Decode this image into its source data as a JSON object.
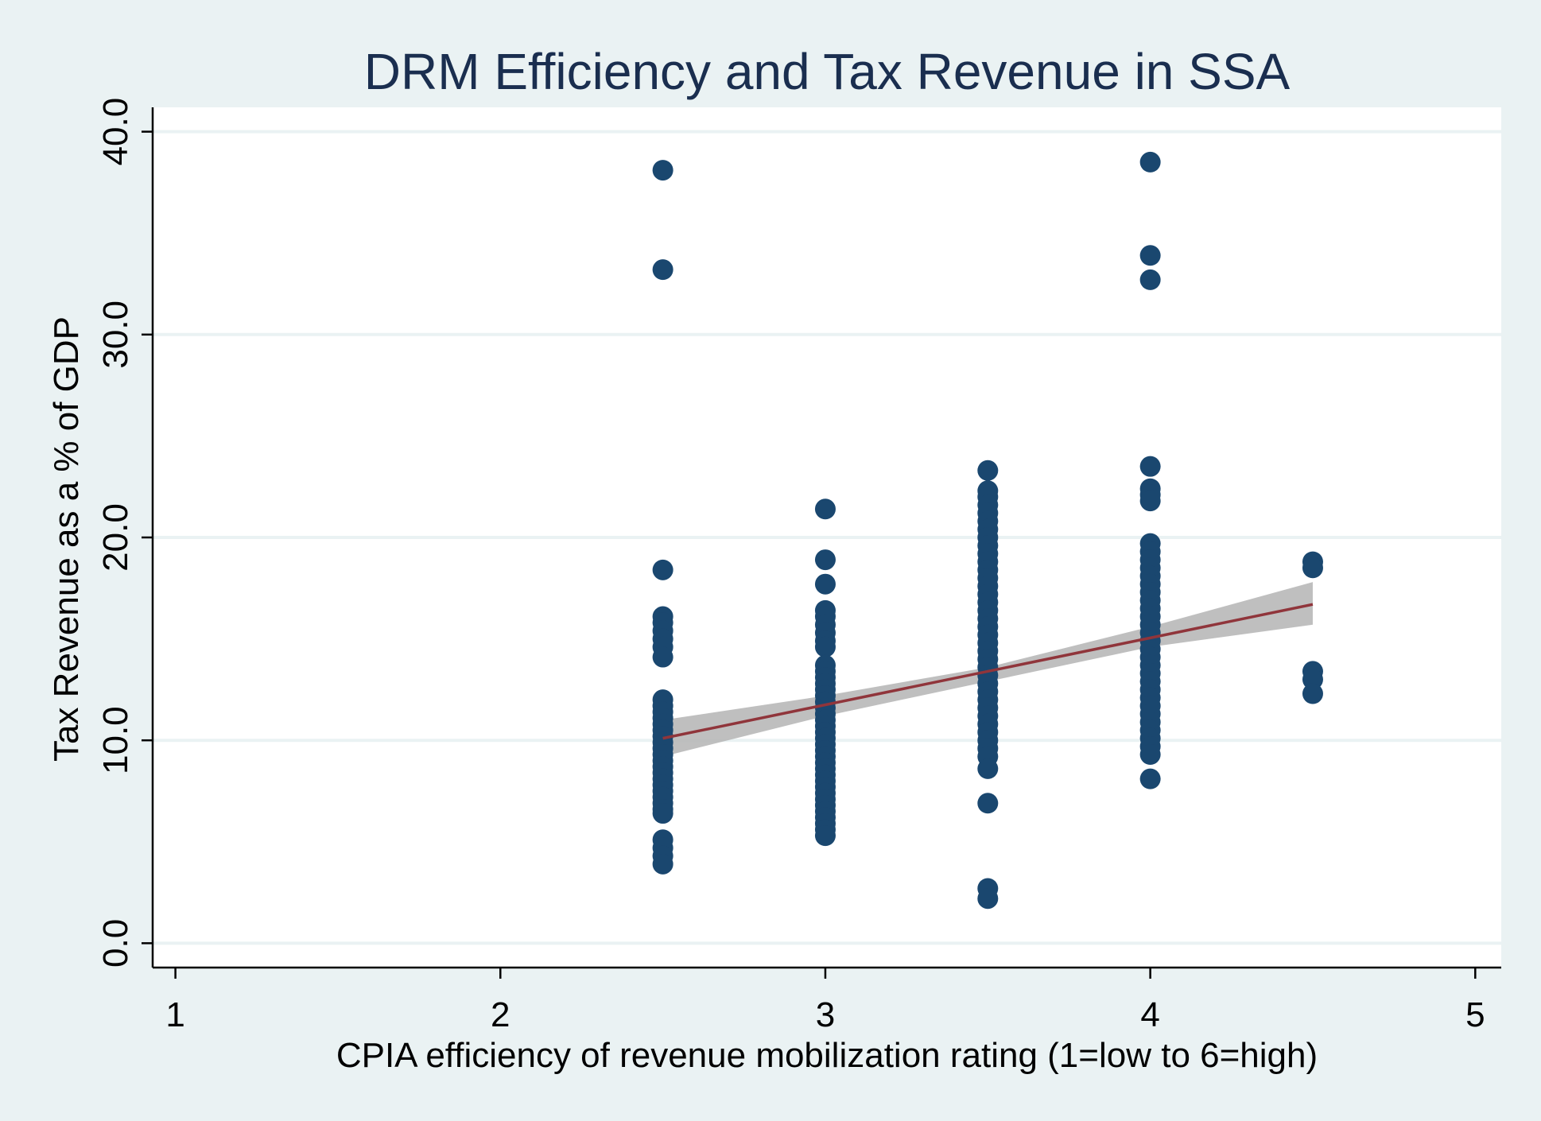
{
  "chart_data": {
    "type": "scatter",
    "title": "DRM Efficiency and Tax Revenue in SSA",
    "xlabel": "CPIA efficiency of revenue mobilization rating (1=low to 6=high)",
    "ylabel": "Tax Revenue as a % of GDP",
    "xlim": [
      0.93,
      5.08
    ],
    "ylim": [
      -1.2,
      41.2
    ],
    "x_ticks": [
      1,
      2,
      3,
      4,
      5
    ],
    "x_tick_labels": [
      "1",
      "2",
      "3",
      "4",
      "5"
    ],
    "y_ticks": [
      0,
      10,
      20,
      30,
      40
    ],
    "y_tick_labels": [
      "0.0",
      "10.0",
      "20.0",
      "30.0",
      "40.0"
    ],
    "grid": "horizontal",
    "legend": "none",
    "colors": {
      "points": "#1a476f",
      "fit_line": "#90353b",
      "confidence_band": "#b8b8b8",
      "plot_background": "#ffffff",
      "outer_background": "#eaf2f3",
      "grid": "#eaf2f3",
      "title": "#1a2e4f"
    },
    "series": [
      {
        "type": "scatter",
        "points": [
          [
            2.5,
            38.1
          ],
          [
            2.5,
            33.2
          ],
          [
            2.5,
            18.4
          ],
          [
            2.5,
            16.1
          ],
          [
            2.5,
            15.8
          ],
          [
            2.5,
            15.4
          ],
          [
            2.5,
            15.0
          ],
          [
            2.5,
            14.6
          ],
          [
            2.5,
            14.1
          ],
          [
            2.5,
            12.0
          ],
          [
            2.5,
            11.7
          ],
          [
            2.5,
            11.4
          ],
          [
            2.5,
            11.1
          ],
          [
            2.5,
            10.8
          ],
          [
            2.5,
            10.5
          ],
          [
            2.5,
            10.2
          ],
          [
            2.5,
            9.9
          ],
          [
            2.5,
            9.6
          ],
          [
            2.5,
            9.3
          ],
          [
            2.5,
            9.0
          ],
          [
            2.5,
            8.7
          ],
          [
            2.5,
            8.4
          ],
          [
            2.5,
            8.1
          ],
          [
            2.5,
            7.8
          ],
          [
            2.5,
            7.5
          ],
          [
            2.5,
            7.2
          ],
          [
            2.5,
            6.9
          ],
          [
            2.5,
            6.6
          ],
          [
            2.5,
            6.4
          ],
          [
            2.5,
            5.1
          ],
          [
            2.5,
            4.7
          ],
          [
            2.5,
            4.3
          ],
          [
            2.5,
            3.9
          ],
          [
            3.0,
            21.4
          ],
          [
            3.0,
            18.9
          ],
          [
            3.0,
            17.7
          ],
          [
            3.0,
            16.4
          ],
          [
            3.0,
            16.1
          ],
          [
            3.0,
            15.7
          ],
          [
            3.0,
            15.3
          ],
          [
            3.0,
            14.9
          ],
          [
            3.0,
            14.6
          ],
          [
            3.0,
            13.7
          ],
          [
            3.0,
            13.4
          ],
          [
            3.0,
            13.1
          ],
          [
            3.0,
            12.8
          ],
          [
            3.0,
            12.5
          ],
          [
            3.0,
            12.2
          ],
          [
            3.0,
            11.9
          ],
          [
            3.0,
            11.6
          ],
          [
            3.0,
            11.3
          ],
          [
            3.0,
            11.0
          ],
          [
            3.0,
            10.7
          ],
          [
            3.0,
            10.4
          ],
          [
            3.0,
            10.1
          ],
          [
            3.0,
            9.8
          ],
          [
            3.0,
            9.5
          ],
          [
            3.0,
            9.2
          ],
          [
            3.0,
            8.9
          ],
          [
            3.0,
            8.6
          ],
          [
            3.0,
            8.3
          ],
          [
            3.0,
            8.0
          ],
          [
            3.0,
            7.7
          ],
          [
            3.0,
            7.4
          ],
          [
            3.0,
            7.1
          ],
          [
            3.0,
            6.8
          ],
          [
            3.0,
            6.5
          ],
          [
            3.0,
            6.2
          ],
          [
            3.0,
            5.9
          ],
          [
            3.0,
            5.6
          ],
          [
            3.0,
            5.3
          ],
          [
            3.5,
            23.3
          ],
          [
            3.5,
            22.3
          ],
          [
            3.5,
            22.0
          ],
          [
            3.5,
            21.6
          ],
          [
            3.5,
            21.2
          ],
          [
            3.5,
            20.8
          ],
          [
            3.5,
            20.4
          ],
          [
            3.5,
            20.0
          ],
          [
            3.5,
            19.6
          ],
          [
            3.5,
            19.2
          ],
          [
            3.5,
            18.8
          ],
          [
            3.5,
            18.4
          ],
          [
            3.5,
            18.0
          ],
          [
            3.5,
            17.6
          ],
          [
            3.5,
            17.2
          ],
          [
            3.5,
            16.8
          ],
          [
            3.5,
            16.4
          ],
          [
            3.5,
            16.0
          ],
          [
            3.5,
            15.6
          ],
          [
            3.5,
            15.2
          ],
          [
            3.5,
            14.8
          ],
          [
            3.5,
            14.4
          ],
          [
            3.5,
            14.0
          ],
          [
            3.5,
            13.6
          ],
          [
            3.5,
            13.2
          ],
          [
            3.5,
            12.8
          ],
          [
            3.5,
            12.4
          ],
          [
            3.5,
            12.0
          ],
          [
            3.5,
            11.6
          ],
          [
            3.5,
            11.2
          ],
          [
            3.5,
            10.8
          ],
          [
            3.5,
            10.4
          ],
          [
            3.5,
            10.0
          ],
          [
            3.5,
            9.6
          ],
          [
            3.5,
            9.2
          ],
          [
            3.5,
            8.6
          ],
          [
            3.5,
            6.9
          ],
          [
            3.5,
            2.7
          ],
          [
            3.5,
            2.2
          ],
          [
            4.0,
            38.5
          ],
          [
            4.0,
            33.9
          ],
          [
            4.0,
            32.7
          ],
          [
            4.0,
            23.5
          ],
          [
            4.0,
            22.4
          ],
          [
            4.0,
            22.1
          ],
          [
            4.0,
            21.8
          ],
          [
            4.0,
            19.7
          ],
          [
            4.0,
            19.3
          ],
          [
            4.0,
            18.9
          ],
          [
            4.0,
            18.5
          ],
          [
            4.0,
            18.1
          ],
          [
            4.0,
            17.7
          ],
          [
            4.0,
            17.3
          ],
          [
            4.0,
            16.9
          ],
          [
            4.0,
            16.5
          ],
          [
            4.0,
            16.1
          ],
          [
            4.0,
            15.7
          ],
          [
            4.0,
            15.3
          ],
          [
            4.0,
            14.9
          ],
          [
            4.0,
            14.5
          ],
          [
            4.0,
            14.1
          ],
          [
            4.0,
            13.7
          ],
          [
            4.0,
            13.3
          ],
          [
            4.0,
            12.9
          ],
          [
            4.0,
            12.5
          ],
          [
            4.0,
            12.1
          ],
          [
            4.0,
            11.7
          ],
          [
            4.0,
            11.3
          ],
          [
            4.0,
            10.9
          ],
          [
            4.0,
            10.5
          ],
          [
            4.0,
            10.1
          ],
          [
            4.0,
            9.7
          ],
          [
            4.0,
            9.3
          ],
          [
            4.0,
            8.1
          ],
          [
            4.5,
            18.8
          ],
          [
            4.5,
            18.5
          ],
          [
            4.5,
            13.4
          ],
          [
            4.5,
            13.0
          ],
          [
            4.5,
            12.3
          ]
        ]
      },
      {
        "type": "line",
        "x": [
          2.5,
          4.5
        ],
        "y": [
          10.1,
          16.7
        ]
      },
      {
        "type": "area",
        "x": [
          2.5,
          3.0,
          3.5,
          4.0,
          4.5
        ],
        "upper": [
          11.0,
          12.2,
          13.6,
          15.6,
          17.8
        ],
        "lower": [
          9.2,
          11.2,
          12.9,
          14.6,
          15.7
        ]
      }
    ]
  }
}
